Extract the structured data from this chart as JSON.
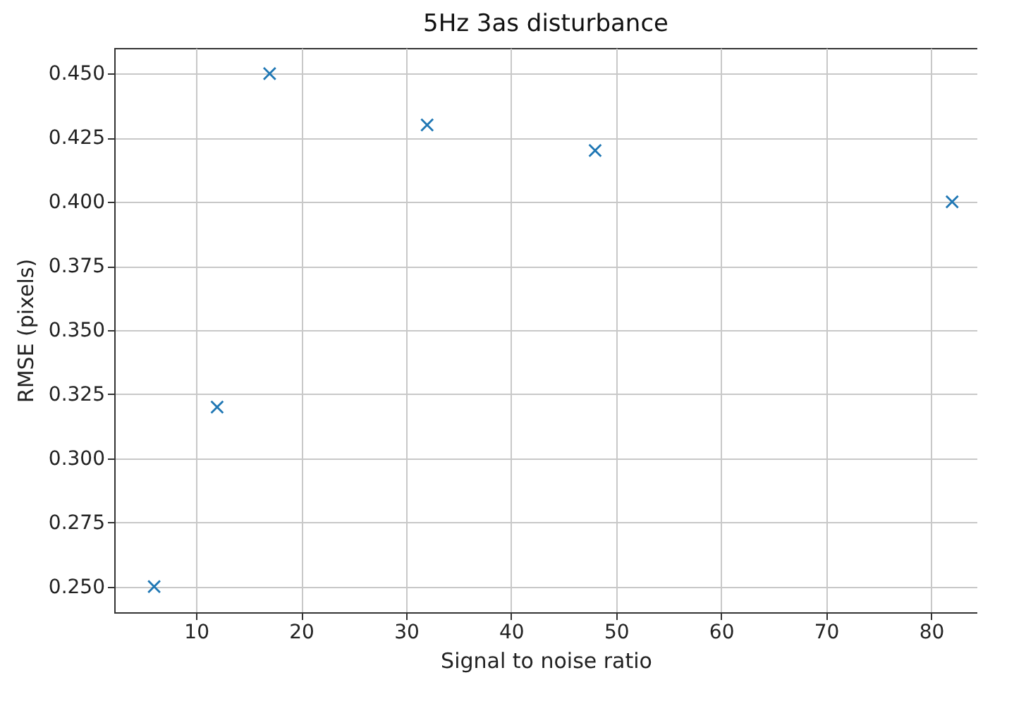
{
  "chart_data": {
    "type": "scatter",
    "title": "5Hz 3as disturbance",
    "xlabel": "Signal to noise ratio",
    "ylabel": "RMSE (pixels)",
    "x": [
      6,
      12,
      17,
      32,
      48,
      82
    ],
    "series": [
      {
        "color": "#1f77b4",
        "values": [
          0.25,
          0.32,
          0.45,
          0.43,
          0.42,
          0.4
        ]
      }
    ],
    "xlim": [
      2.2,
      84.4
    ],
    "xticks": [
      10,
      20,
      30,
      40,
      50,
      60,
      70,
      80
    ],
    "ylim": [
      0.24,
      0.46
    ],
    "yticks": [
      {
        "value": 0.25,
        "label": "0.250"
      },
      0.275,
      {
        "value": 0.3,
        "label": "0.300"
      },
      0.325,
      {
        "value": 0.35,
        "label": "0.350"
      },
      0.375,
      {
        "value": 0.4,
        "label": "0.400"
      },
      0.425,
      {
        "value": 0.45,
        "label": "0.450"
      }
    ],
    "grid": true,
    "marker": "cross"
  }
}
